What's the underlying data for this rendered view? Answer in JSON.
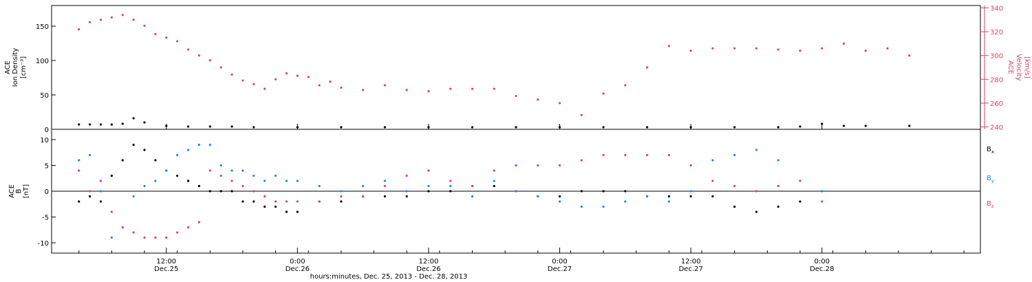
{
  "chart_data": [
    {
      "type": "scatter",
      "panel": "top",
      "ylabel_left": [
        "ACE",
        "Ion Density",
        "[cm⁻³]"
      ],
      "ylabel_right": [
        "ACE",
        "Velocity",
        "[km/s]"
      ],
      "ylim_left": [
        0,
        180
      ],
      "ylim_right": [
        238,
        342
      ],
      "yticks_left": [
        "0",
        "50",
        "100",
        "150"
      ],
      "yticks_right": [
        "240",
        "260",
        "280",
        "300",
        "320",
        "340"
      ],
      "series": [
        {
          "axis": "left",
          "color": "#000000",
          "x": [
            0,
            1,
            2,
            3,
            4,
            5,
            6,
            8,
            10,
            12,
            14,
            16,
            20,
            24,
            28,
            32,
            36,
            40,
            44,
            48,
            52,
            56,
            60,
            64,
            66,
            68,
            70,
            72,
            76
          ],
          "values": [
            7,
            7,
            7,
            7,
            8,
            16,
            10,
            5,
            4,
            4,
            4,
            3,
            3,
            3,
            3,
            3,
            3,
            3,
            3,
            3,
            3,
            3,
            3,
            3,
            4,
            8,
            5,
            5,
            5
          ]
        },
        {
          "axis": "right",
          "color": "#e0406a",
          "x": [
            0,
            1,
            2,
            3,
            4,
            5,
            6,
            7,
            8,
            9,
            10,
            11,
            12,
            13,
            14,
            15,
            16,
            17,
            18,
            19,
            20,
            21,
            22,
            23,
            24,
            26,
            28,
            30,
            32,
            34,
            36,
            38,
            40,
            42,
            44,
            46,
            48,
            50,
            52,
            54,
            56,
            58,
            60,
            62,
            64,
            66,
            68,
            70,
            72,
            74,
            76
          ],
          "values": [
            322,
            328,
            330,
            332,
            334,
            330,
            325,
            318,
            315,
            312,
            305,
            300,
            296,
            290,
            284,
            279,
            276,
            272,
            280,
            285,
            283,
            282,
            275,
            278,
            273,
            271,
            275,
            271,
            270,
            272,
            272,
            272,
            266,
            263,
            260,
            250,
            268,
            275,
            290,
            308,
            304,
            306,
            306,
            306,
            305,
            304,
            306,
            310,
            304,
            306,
            300
          ]
        }
      ]
    },
    {
      "type": "scatter",
      "panel": "bottom",
      "ylabel": [
        "ACE",
        "B",
        "[nT]"
      ],
      "ylim": [
        -12,
        12
      ],
      "yticks": [
        "-10",
        "-5",
        "0",
        "5",
        "10"
      ],
      "xlim": [
        -2.5,
        82.5
      ],
      "x_ticks": [
        {
          "x": 8,
          "label": "12:00",
          "sublabel": "Dec.25"
        },
        {
          "x": 20,
          "label": "0:00",
          "sublabel": "Dec.26"
        },
        {
          "x": 32,
          "label": "12:00",
          "sublabel": "Dec.26"
        },
        {
          "x": 44,
          "label": "0:00",
          "sublabel": "Dec.27"
        },
        {
          "x": 56,
          "label": "12:00",
          "sublabel": "Dec.27"
        },
        {
          "x": 68,
          "label": "0:00",
          "sublabel": "Dec.28"
        }
      ],
      "xlabel": "hours:minutes, Dec. 25, 2013 - Dec. 28, 2013",
      "series": [
        {
          "name": "Bx",
          "label_main": "B",
          "label_sub": "x",
          "color": "#000000",
          "x": [
            0,
            1,
            2,
            3,
            4,
            5,
            6,
            7,
            8,
            9,
            10,
            11,
            12,
            13,
            14,
            15,
            16,
            17,
            18,
            19,
            20,
            22,
            24,
            26,
            28,
            30,
            32,
            34,
            36,
            38,
            40,
            42,
            44,
            46,
            48,
            50,
            52,
            54,
            56,
            58,
            60,
            62,
            64,
            66,
            68
          ],
          "values": [
            -2,
            -1,
            -2,
            3,
            6,
            9,
            8,
            6,
            4,
            3,
            2,
            1,
            0,
            0,
            0,
            -2,
            -2,
            -3,
            -3,
            -4,
            -4,
            -2,
            -2,
            -1,
            -1,
            -1,
            0,
            0,
            1,
            1,
            0,
            -1,
            -1,
            0,
            0,
            0,
            -1,
            -1,
            -1,
            -1,
            -3,
            -4,
            -3,
            -2,
            0
          ]
        },
        {
          "name": "By",
          "label_main": "B",
          "label_sub": "y",
          "color": "#1e88e5",
          "x": [
            0,
            1,
            2,
            3,
            4,
            5,
            6,
            7,
            8,
            9,
            10,
            11,
            12,
            13,
            14,
            15,
            16,
            17,
            18,
            19,
            20,
            22,
            24,
            26,
            28,
            30,
            32,
            34,
            36,
            38,
            40,
            42,
            44,
            46,
            48,
            50,
            52,
            54,
            56,
            58,
            60,
            62,
            64,
            66,
            68
          ],
          "values": [
            6,
            7,
            0,
            -9,
            -7,
            -1,
            1,
            2,
            4,
            7,
            8,
            9,
            9,
            5,
            4,
            4,
            3,
            2,
            3,
            2,
            2,
            1,
            0,
            1,
            2,
            0,
            1,
            1,
            -1,
            2,
            0,
            -1,
            -2,
            -3,
            -3,
            -2,
            -1,
            -2,
            0,
            6,
            7,
            8,
            6,
            2,
            0
          ]
        },
        {
          "name": "Bz",
          "label_main": "B",
          "label_sub": "z",
          "color": "#e0406a",
          "x": [
            0,
            1,
            2,
            3,
            4,
            5,
            6,
            7,
            8,
            9,
            10,
            11,
            12,
            13,
            14,
            15,
            16,
            17,
            18,
            19,
            20,
            22,
            24,
            26,
            28,
            30,
            32,
            34,
            36,
            38,
            40,
            42,
            44,
            46,
            48,
            50,
            52,
            54,
            56,
            58,
            60,
            62,
            64,
            66,
            68
          ],
          "values": [
            4,
            0,
            2,
            -4,
            -7,
            -8,
            -9,
            -9,
            -9,
            -8,
            -7,
            -6,
            4,
            3,
            2,
            1,
            0,
            -1,
            -2,
            -2,
            -2,
            -2,
            -1,
            -1,
            1,
            3,
            4,
            2,
            1,
            4,
            5,
            5,
            5,
            6,
            7,
            7,
            7,
            7,
            5,
            2,
            1,
            0,
            1,
            2,
            -2
          ]
        }
      ]
    }
  ]
}
